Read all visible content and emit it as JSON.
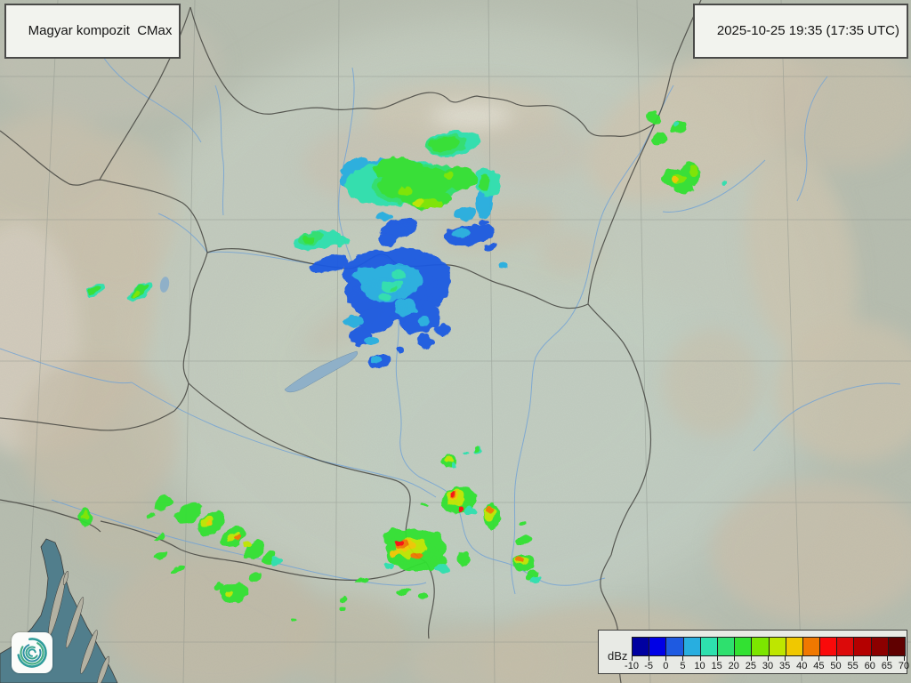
{
  "product": {
    "title": "Magyar kompozit  CMax",
    "timestamp": "2025-10-25 19:35 (17:35 UTC)"
  },
  "legend": {
    "unit": "dBz",
    "ticks": [
      "-10",
      "-5",
      "0",
      "5",
      "10",
      "15",
      "20",
      "25",
      "30",
      "35",
      "40",
      "45",
      "50",
      "55",
      "60",
      "65",
      "70"
    ],
    "colors": [
      "#0000A0",
      "#0000E6",
      "#1E5AE1",
      "#28AEE0",
      "#2EE0AE",
      "#2EE06E",
      "#32E132",
      "#7CE600",
      "#BEE600",
      "#F0C800",
      "#F07800",
      "#FA0A0A",
      "#DC0A0A",
      "#B40000",
      "#8C0000",
      "#600000"
    ]
  },
  "logo": {
    "name": "hungaromet-spiral-logo"
  },
  "radar": {
    "levels": [
      -10,
      -5,
      0,
      5,
      10,
      15,
      20,
      25,
      30,
      35,
      40,
      45,
      50,
      55,
      60,
      65,
      70
    ],
    "echo_groups": [
      {
        "name": "north-slovakia-rain-area",
        "blobs": [
          [
            420,
            196,
            40,
            16,
            -10,
            3
          ],
          [
            398,
            187,
            17,
            8,
            -25,
            3
          ],
          [
            432,
            244,
            9,
            5,
            0,
            3
          ],
          [
            545,
            224,
            9,
            22,
            5,
            3
          ],
          [
            523,
            240,
            13,
            7,
            -10,
            3
          ],
          [
            445,
            205,
            57,
            26,
            -5,
            4
          ],
          [
            508,
            162,
            30,
            14,
            -8,
            4
          ],
          [
            548,
            205,
            13,
            17,
            0,
            4
          ],
          [
            470,
            207,
            52,
            22,
            -5,
            5
          ],
          [
            502,
            163,
            24,
            11,
            -8,
            5
          ],
          [
            468,
            206,
            44,
            18,
            -5,
            6
          ],
          [
            500,
            162,
            18,
            8,
            -8,
            6
          ],
          [
            448,
            190,
            28,
            13,
            0,
            6
          ],
          [
            516,
            200,
            20,
            13,
            0,
            6
          ],
          [
            545,
            206,
            7,
            11,
            0,
            6
          ],
          [
            480,
            224,
            28,
            10,
            0,
            6
          ],
          [
            484,
            229,
            15,
            5,
            0,
            7
          ],
          [
            455,
            215,
            8,
            4,
            0,
            7
          ],
          [
            504,
            196,
            6,
            4,
            0,
            7
          ],
          [
            470,
            228,
            8,
            3,
            0,
            8
          ],
          [
            450,
            256,
            20,
            10,
            -15,
            2
          ],
          [
            438,
            266,
            11,
            7,
            0,
            2
          ],
          [
            452,
            252,
            7,
            4,
            0,
            3
          ]
        ]
      },
      {
        "name": "central-hungary-light-rain",
        "blobs": [
          [
            358,
            270,
            28,
            11,
            -10,
            4
          ],
          [
            350,
            268,
            15,
            7,
            -10,
            5
          ],
          [
            347,
            269,
            7,
            4,
            0,
            6
          ],
          [
            384,
            271,
            8,
            5,
            0,
            4
          ],
          [
            528,
            264,
            30,
            11,
            -8,
            2
          ],
          [
            519,
            262,
            11,
            5,
            0,
            3
          ],
          [
            552,
            277,
            8,
            4,
            -20,
            2
          ],
          [
            544,
            250,
            5,
            3,
            0,
            2
          ],
          [
            565,
            298,
            4,
            3,
            0,
            3
          ],
          [
            446,
            258,
            20,
            11,
            -20,
            2
          ],
          [
            436,
            270,
            10,
            7,
            0,
            2
          ],
          [
            448,
            320,
            60,
            40,
            -10,
            2
          ],
          [
            412,
            300,
            30,
            15,
            -20,
            2
          ],
          [
            371,
            297,
            22,
            9,
            -15,
            2
          ],
          [
            470,
            356,
            24,
            20,
            0,
            2
          ],
          [
            420,
            360,
            20,
            14,
            0,
            2
          ],
          [
            404,
            379,
            13,
            10,
            0,
            2
          ],
          [
            478,
            384,
            10,
            8,
            0,
            2
          ],
          [
            497,
            371,
            9,
            7,
            0,
            2
          ],
          [
            440,
            318,
            34,
            21,
            -10,
            3
          ],
          [
            412,
            310,
            15,
            9,
            0,
            3
          ],
          [
            456,
            346,
            12,
            10,
            0,
            3
          ],
          [
            398,
            362,
            10,
            7,
            0,
            3
          ],
          [
            418,
            383,
            7,
            5,
            0,
            3
          ],
          [
            477,
            361,
            8,
            6,
            0,
            3
          ],
          [
            440,
            322,
            12,
            7,
            0,
            4
          ],
          [
            449,
            310,
            7,
            5,
            0,
            4
          ],
          [
            433,
            334,
            6,
            4,
            0,
            4
          ],
          [
            442,
            325,
            5,
            3,
            0,
            5
          ],
          [
            428,
            406,
            12,
            8,
            -10,
            2
          ],
          [
            425,
            404,
            6,
            4,
            0,
            3
          ],
          [
            449,
            394,
            4,
            3,
            0,
            2
          ]
        ]
      },
      {
        "name": "northeast-carpathia-cells",
        "blobs": [
          [
            735,
            133,
            6,
            9,
            -20,
            6
          ],
          [
            762,
            143,
            8,
            6,
            -25,
            6
          ],
          [
            742,
            156,
            8,
            7,
            -10,
            6
          ],
          [
            760,
            141,
            4,
            3,
            0,
            4
          ],
          [
            758,
            200,
            15,
            10,
            -10,
            6
          ],
          [
            776,
            196,
            11,
            13,
            0,
            6
          ],
          [
            768,
            211,
            11,
            7,
            0,
            6
          ],
          [
            763,
            201,
            8,
            5,
            0,
            7
          ],
          [
            780,
            192,
            5,
            6,
            0,
            7
          ],
          [
            759,
            201,
            4,
            3,
            0,
            9
          ],
          [
            814,
            208,
            3,
            3,
            0,
            4
          ]
        ]
      },
      {
        "name": "west-alps-cells",
        "blobs": [
          [
            107,
            327,
            11,
            6,
            -35,
            4
          ],
          [
            106,
            327,
            8,
            4,
            -35,
            6
          ],
          [
            158,
            328,
            16,
            8,
            -35,
            4
          ],
          [
            157,
            327,
            12,
            6,
            -35,
            6
          ],
          [
            152,
            331,
            5,
            3,
            -35,
            7
          ]
        ]
      },
      {
        "name": "southwest-croatia-band",
        "blobs": [
          [
            96,
            582,
            7,
            10,
            -15,
            6
          ],
          [
            96,
            580,
            3,
            5,
            0,
            7
          ],
          [
            183,
            565,
            11,
            7,
            -30,
            6
          ],
          [
            212,
            577,
            16,
            10,
            -30,
            6
          ],
          [
            237,
            589,
            17,
            11,
            -35,
            6
          ],
          [
            262,
            604,
            16,
            10,
            -35,
            6
          ],
          [
            285,
            618,
            13,
            8,
            -35,
            6
          ],
          [
            302,
            628,
            9,
            6,
            -35,
            6
          ],
          [
            310,
            631,
            6,
            4,
            -35,
            4
          ],
          [
            233,
            587,
            9,
            5,
            -35,
            8
          ],
          [
            236,
            588,
            4,
            3,
            0,
            9
          ],
          [
            262,
            604,
            8,
            4,
            -35,
            8
          ],
          [
            267,
            606,
            4,
            3,
            0,
            10
          ],
          [
            278,
            612,
            5,
            3,
            -35,
            8
          ],
          [
            170,
            580,
            5,
            3,
            -20,
            6
          ],
          [
            178,
            604,
            6,
            3,
            -25,
            6
          ],
          [
            181,
            624,
            8,
            4,
            -30,
            6
          ],
          [
            200,
            640,
            7,
            3,
            -20,
            6
          ],
          [
            263,
            667,
            16,
            11,
            -10,
            6
          ],
          [
            258,
            668,
            5,
            3,
            0,
            8
          ],
          [
            287,
            649,
            8,
            5,
            -20,
            6
          ],
          [
            247,
            659,
            7,
            4,
            0,
            6
          ]
        ]
      },
      {
        "name": "south-border-cells",
        "blobs": [
          [
            506,
            519,
            8,
            7,
            -10,
            6
          ],
          [
            505,
            518,
            4,
            3,
            0,
            8
          ],
          [
            510,
            523,
            4,
            3,
            0,
            4
          ],
          [
            537,
            507,
            5,
            4,
            -10,
            4
          ],
          [
            536,
            506,
            3,
            3,
            0,
            6
          ],
          [
            524,
            510,
            3,
            2,
            0,
            4
          ]
        ]
      },
      {
        "name": "southeast-vojvodina-storms",
        "blobs": [
          [
            516,
            563,
            20,
            14,
            -10,
            6
          ],
          [
            512,
            560,
            11,
            8,
            0,
            8
          ],
          [
            510,
            558,
            6,
            5,
            0,
            9
          ],
          [
            509,
            557,
            4,
            4,
            0,
            10
          ],
          [
            508,
            556,
            3,
            3,
            0,
            11
          ],
          [
            517,
            572,
            3,
            4,
            0,
            11
          ],
          [
            529,
            574,
            8,
            5,
            0,
            4
          ],
          [
            553,
            580,
            9,
            14,
            0,
            6
          ],
          [
            551,
            577,
            6,
            8,
            0,
            8
          ],
          [
            551,
            573,
            4,
            4,
            0,
            10
          ],
          [
            468,
            618,
            33,
            24,
            -5,
            6
          ],
          [
            445,
            605,
            15,
            10,
            0,
            6
          ],
          [
            490,
            632,
            13,
            9,
            0,
            6
          ],
          [
            520,
            628,
            7,
            7,
            0,
            6
          ],
          [
            462,
            616,
            17,
            11,
            -10,
            8
          ],
          [
            456,
            614,
            11,
            7,
            -10,
            9
          ],
          [
            452,
            612,
            8,
            6,
            -10,
            10
          ],
          [
            449,
            610,
            5,
            4,
            0,
            11
          ],
          [
            470,
            625,
            6,
            4,
            0,
            10
          ],
          [
            444,
            622,
            5,
            3,
            0,
            9
          ],
          [
            498,
            640,
            8,
            5,
            0,
            4
          ],
          [
            437,
            636,
            6,
            4,
            0,
            4
          ],
          [
            588,
            607,
            9,
            6,
            -10,
            6
          ],
          [
            588,
            589,
            3,
            2,
            0,
            6
          ],
          [
            588,
            633,
            12,
            10,
            -5,
            6
          ],
          [
            586,
            630,
            7,
            5,
            0,
            8
          ],
          [
            585,
            629,
            4,
            4,
            0,
            10
          ],
          [
            598,
            646,
            7,
            5,
            -30,
            6
          ],
          [
            602,
            651,
            6,
            4,
            -30,
            4
          ],
          [
            478,
            568,
            3,
            2,
            0,
            6
          ],
          [
            453,
            666,
            7,
            3,
            -10,
            6
          ],
          [
            476,
            670,
            5,
            3,
            -10,
            6
          ],
          [
            407,
            653,
            8,
            3,
            -5,
            6
          ],
          [
            386,
            674,
            6,
            3,
            -10,
            6
          ],
          [
            384,
            685,
            5,
            3,
            -10,
            6
          ],
          [
            330,
            696,
            3,
            2,
            0,
            6
          ]
        ]
      }
    ]
  }
}
